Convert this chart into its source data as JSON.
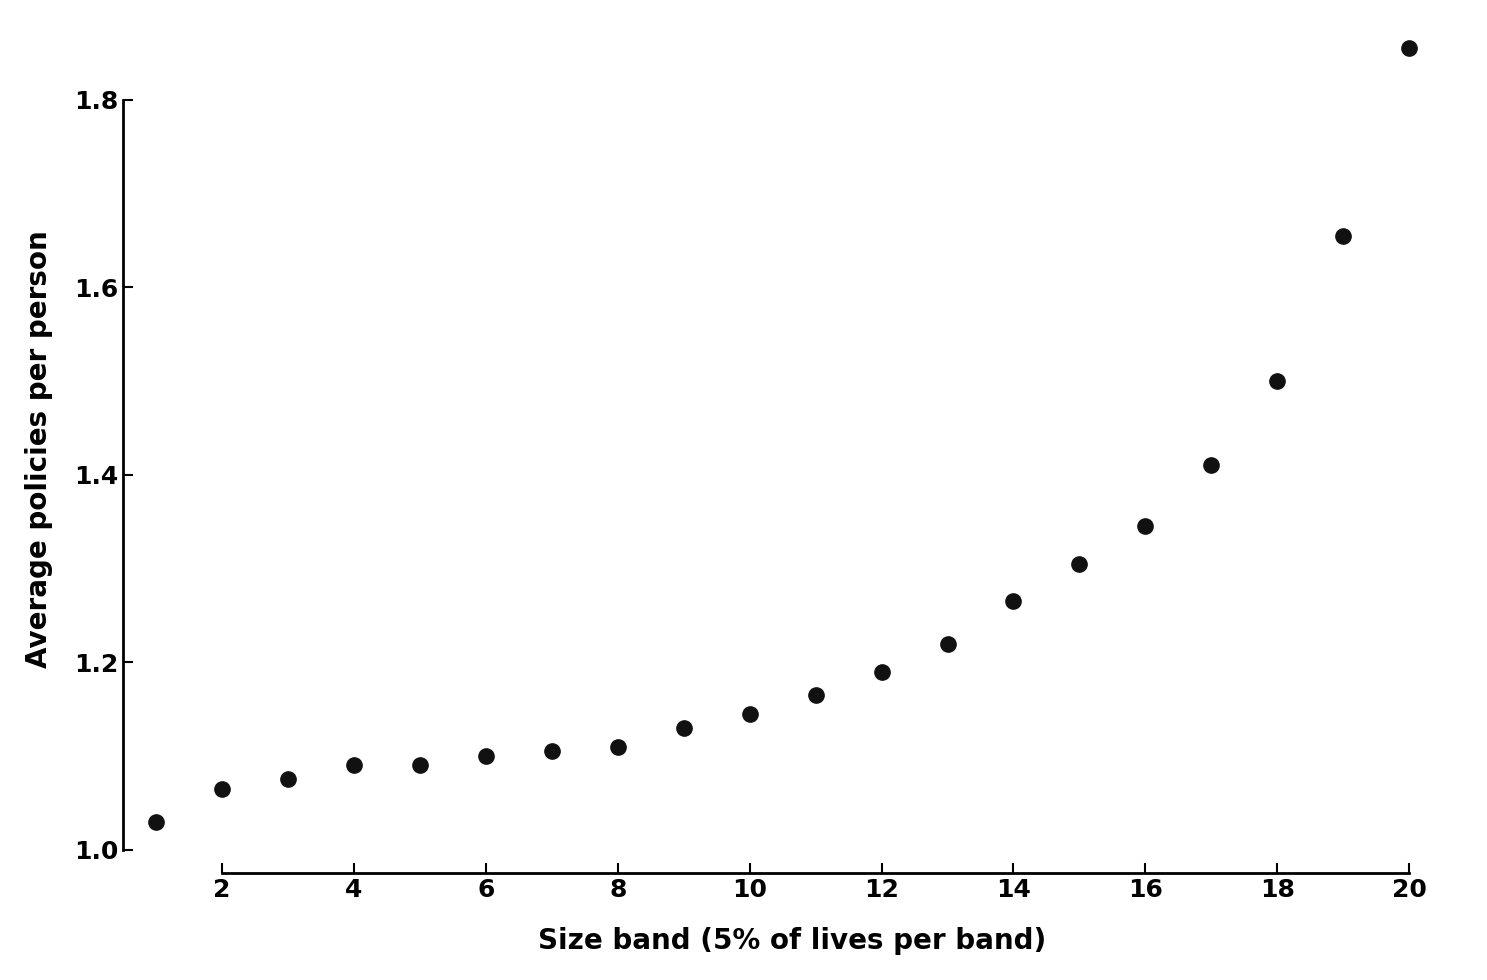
{
  "x": [
    1,
    2,
    3,
    4,
    5,
    6,
    7,
    8,
    9,
    10,
    11,
    12,
    13,
    14,
    15,
    16,
    17,
    18,
    19,
    20
  ],
  "y": [
    1.03,
    1.065,
    1.075,
    1.09,
    1.09,
    1.1,
    1.105,
    1.11,
    1.13,
    1.145,
    1.165,
    1.19,
    1.22,
    1.265,
    1.305,
    1.345,
    1.41,
    1.5,
    1.655,
    1.855
  ],
  "xlabel": "Size band (5% of lives per band)",
  "ylabel": "Average policies per person",
  "xlim": [
    0.5,
    20.8
  ],
  "ylim": [
    0.975,
    1.88
  ],
  "xticks": [
    2,
    4,
    6,
    8,
    10,
    12,
    14,
    16,
    18,
    20
  ],
  "yticks": [
    1.0,
    1.2,
    1.4,
    1.6,
    1.8
  ],
  "marker_color": "#111111",
  "marker_size": 11,
  "background_color": "#ffffff",
  "xlabel_fontsize": 20,
  "ylabel_fontsize": 20,
  "tick_fontsize": 18,
  "font_weight": "bold"
}
